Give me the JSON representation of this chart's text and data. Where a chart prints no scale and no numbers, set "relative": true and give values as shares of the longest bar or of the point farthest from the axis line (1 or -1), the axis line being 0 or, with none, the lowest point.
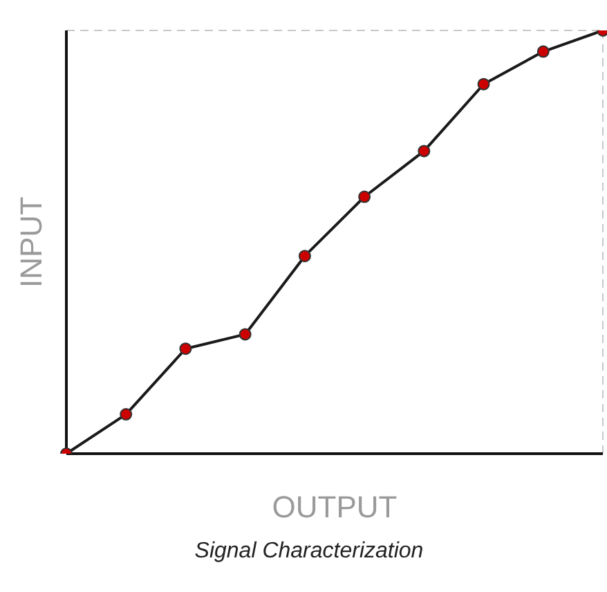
{
  "chart_data": {
    "type": "line",
    "title": "Signal Characterization",
    "xlabel": "OUTPUT",
    "ylabel": "INPUT",
    "relative": true,
    "categories": [
      null,
      null,
      null,
      null,
      null,
      null,
      null,
      null,
      null,
      null
    ],
    "series": [
      {
        "color": "#1a1a1a",
        "colors": [
          "#cc0000",
          "#cc0000",
          "#cc0000",
          "#cc0000",
          "#cc0000",
          "#cc0000",
          "#cc0000",
          "#cc0000",
          "#cc0000",
          "#cc0000"
        ],
        "values": [
          0,
          0.093,
          0.248,
          0.282,
          0.467,
          0.607,
          0.715,
          0.873,
          0.95,
          1
        ]
      }
    ],
    "ref_lines": [
      {
        "axis": "y",
        "value": 1,
        "color": "#c8c8c8",
        "line_style": "dashed"
      }
    ],
    "marker": "circle",
    "line_style": "solid",
    "grid": false,
    "legend": false
  }
}
